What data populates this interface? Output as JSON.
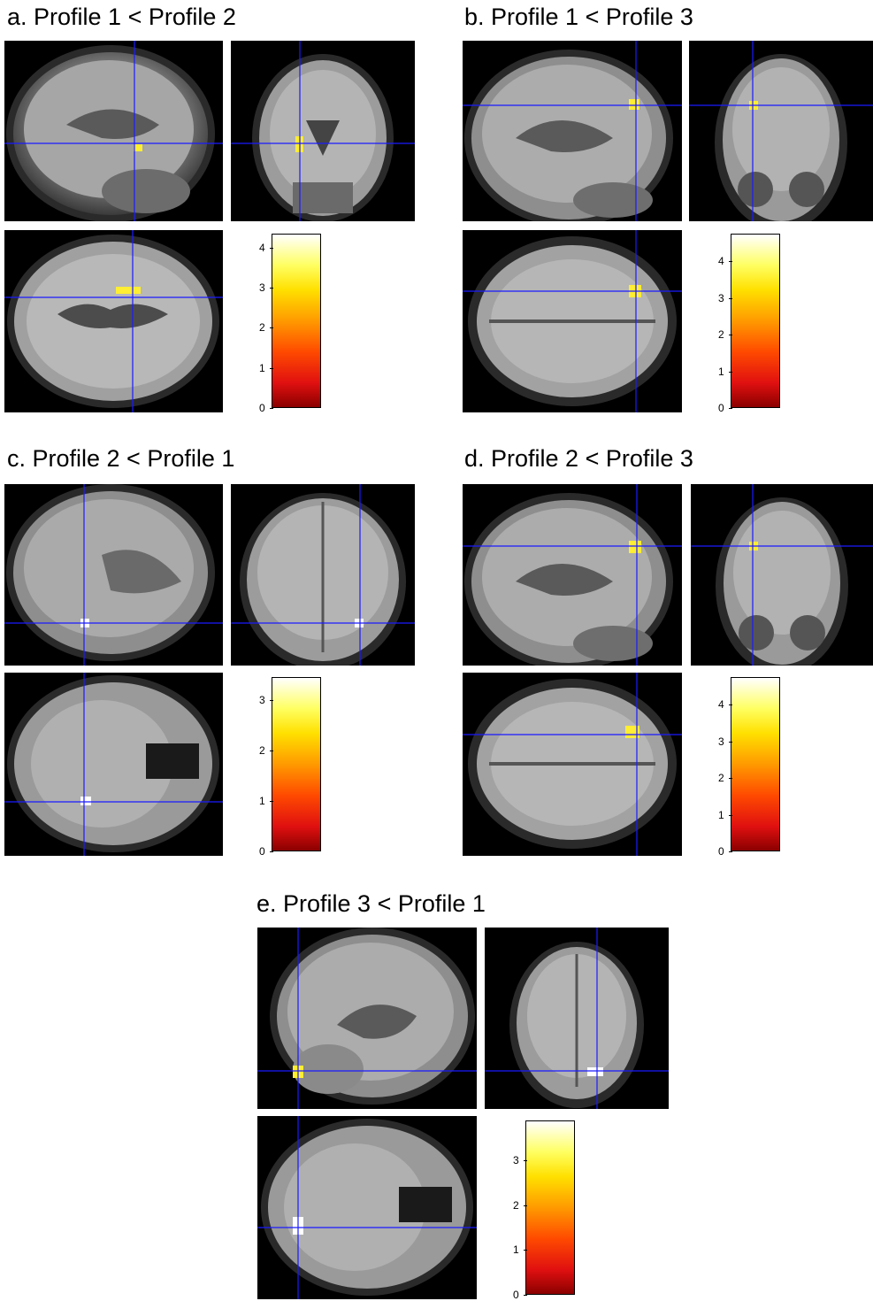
{
  "panels": [
    {
      "id": "a",
      "title": "a. Profile 1 < Profile 2",
      "colorbar_ticks": [
        "0",
        "1",
        "2",
        "3",
        "4"
      ],
      "colorbar_max": 4.35
    },
    {
      "id": "b",
      "title": "b. Profile 1 < Profile 3",
      "colorbar_ticks": [
        "0",
        "1",
        "2",
        "3",
        "4"
      ],
      "colorbar_max": 4.75
    },
    {
      "id": "c",
      "title": "c. Profile 2 < Profile 1",
      "colorbar_ticks": [
        "0",
        "1",
        "2",
        "3"
      ],
      "colorbar_max": 3.45
    },
    {
      "id": "d",
      "title": "d. Profile 2 < Profile 3",
      "colorbar_ticks": [
        "0",
        "1",
        "2",
        "3",
        "4"
      ],
      "colorbar_max": 4.75
    },
    {
      "id": "e",
      "title": "e. Profile 3 < Profile 1",
      "colorbar_ticks": [
        "0",
        "1",
        "2",
        "3"
      ],
      "colorbar_max": 3.9
    }
  ],
  "colors": {
    "crosshair": "#1a1aff",
    "background": "#000000",
    "activation": "#ffee33"
  }
}
